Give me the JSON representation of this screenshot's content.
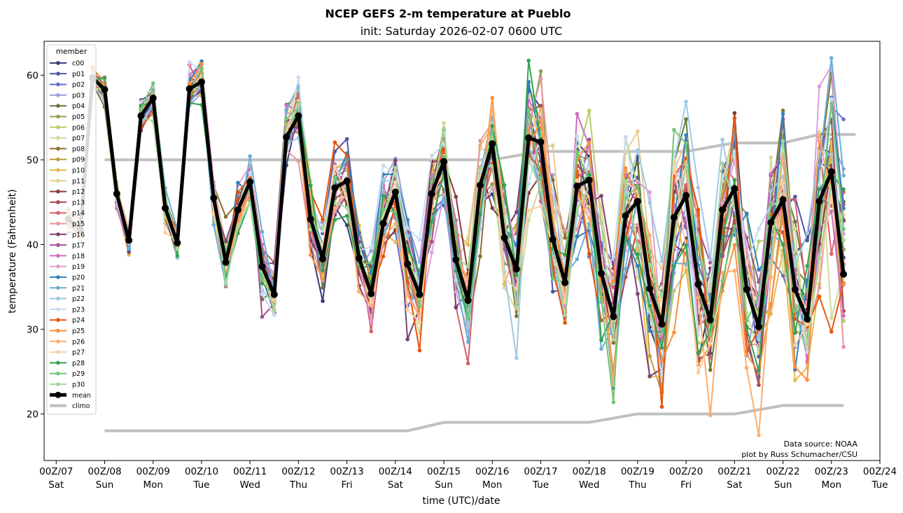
{
  "chart_data": {
    "type": "line",
    "title": "NCEP GEFS 2-m temperature at Pueblo",
    "subtitle": "init: Saturday 2026-02-07 0600 UTC",
    "xlabel": "time (UTC)/date",
    "ylabel": "temperature (Fahrenheit)",
    "xlim_hours": [
      -6,
      408
    ],
    "ylim": [
      14.5,
      64
    ],
    "grid": false,
    "legend": {
      "title": "member",
      "placement": "top-left"
    },
    "x_ticks": [
      {
        "line1": "00Z/07",
        "line2": "Sat"
      },
      {
        "line1": "00Z/08",
        "line2": "Sun"
      },
      {
        "line1": "00Z/09",
        "line2": "Mon"
      },
      {
        "line1": "00Z/10",
        "line2": "Tue"
      },
      {
        "line1": "00Z/11",
        "line2": "Wed"
      },
      {
        "line1": "00Z/12",
        "line2": "Thu"
      },
      {
        "line1": "00Z/13",
        "line2": "Fri"
      },
      {
        "line1": "00Z/14",
        "line2": "Sat"
      },
      {
        "line1": "00Z/15",
        "line2": "Sun"
      },
      {
        "line1": "00Z/16",
        "line2": "Mon"
      },
      {
        "line1": "00Z/17",
        "line2": "Tue"
      },
      {
        "line1": "00Z/18",
        "line2": "Wed"
      },
      {
        "line1": "00Z/19",
        "line2": "Thu"
      },
      {
        "line1": "00Z/20",
        "line2": "Fri"
      },
      {
        "line1": "00Z/21",
        "line2": "Sat"
      },
      {
        "line1": "00Z/22",
        "line2": "Sun"
      },
      {
        "line1": "00Z/23",
        "line2": "Mon"
      },
      {
        "line1": "00Z/24",
        "line2": "Tue"
      }
    ],
    "y_ticks": [
      20,
      30,
      40,
      50,
      60
    ],
    "x_hours_from_00Z07": [
      6,
      12,
      18,
      24,
      30,
      36,
      42,
      48,
      54,
      60,
      66,
      72,
      78,
      84,
      90,
      96,
      102,
      108,
      114,
      120,
      126,
      132,
      138,
      144,
      150,
      156,
      162,
      168,
      174,
      180,
      186,
      192,
      198,
      204,
      210,
      216,
      222,
      228,
      234,
      240,
      246,
      252,
      258,
      264,
      270,
      276,
      282,
      288,
      294,
      300,
      306,
      312,
      318,
      324,
      330,
      336,
      342,
      348,
      354,
      360,
      366,
      372,
      378,
      384,
      390
    ],
    "mean": {
      "name": "mean",
      "color": "#000000",
      "values": [
        43.0,
        41.7,
        59.7,
        58.3,
        46.0,
        40.5,
        55.2,
        57.3,
        44.3,
        40.2,
        58.4,
        59.2,
        45.5,
        37.9,
        44.1,
        47.4,
        37.4,
        34.1,
        52.7,
        55.2,
        43.0,
        38.3,
        46.7,
        47.5,
        38.4,
        34.2,
        42.5,
        46.2,
        37.7,
        34.1,
        46.0,
        49.8,
        38.2,
        33.4,
        47.0,
        51.9,
        40.8,
        37.1,
        52.6,
        52.1,
        40.6,
        35.5,
        46.9,
        47.6,
        36.6,
        31.5,
        43.4,
        45.1,
        34.8,
        30.6,
        43.2,
        45.8,
        35.3,
        31.1,
        44.1,
        46.6,
        34.7,
        30.3,
        42.6,
        45.3,
        34.7,
        31.2,
        45.1,
        48.6,
        36.5
      ]
    },
    "climo": {
      "name": "climo",
      "color": "#c0c0c0",
      "x_hours": [
        24,
        240,
        264,
        288,
        360,
        384,
        456,
        480,
        504,
        576,
        600,
        624
      ],
      "x_hours_note": "climo step points",
      "high": {
        "x": [
          24,
          216,
          240,
          312,
          336,
          360,
          378,
          396
        ],
        "values": [
          50,
          50,
          51,
          51,
          52,
          52,
          53,
          53
        ]
      },
      "low": {
        "x": [
          24,
          174,
          192,
          264,
          288,
          336,
          360,
          378,
          390
        ],
        "values": [
          18,
          18,
          19,
          19,
          20,
          20,
          21,
          21,
          21
        ]
      }
    },
    "members": [
      {
        "name": "c00",
        "color": "#393b79"
      },
      {
        "name": "p01",
        "color": "#5254a3"
      },
      {
        "name": "p02",
        "color": "#6b6ecf"
      },
      {
        "name": "p03",
        "color": "#9c9ede"
      },
      {
        "name": "p04",
        "color": "#637939"
      },
      {
        "name": "p05",
        "color": "#8ca252"
      },
      {
        "name": "p06",
        "color": "#b5cf6b"
      },
      {
        "name": "p07",
        "color": "#cedb9c"
      },
      {
        "name": "p08",
        "color": "#8c6d31"
      },
      {
        "name": "p09",
        "color": "#bd9e39"
      },
      {
        "name": "p10",
        "color": "#e7ba52"
      },
      {
        "name": "p11",
        "color": "#e7cb94"
      },
      {
        "name": "p12",
        "color": "#843c39"
      },
      {
        "name": "p13",
        "color": "#ad494a"
      },
      {
        "name": "p14",
        "color": "#d6616b"
      },
      {
        "name": "p15",
        "color": "#e7969c"
      },
      {
        "name": "p16",
        "color": "#7b4173"
      },
      {
        "name": "p17",
        "color": "#a55194"
      },
      {
        "name": "p18",
        "color": "#ce6dbd"
      },
      {
        "name": "p19",
        "color": "#de9ed6"
      },
      {
        "name": "p20",
        "color": "#3182bd"
      },
      {
        "name": "p21",
        "color": "#6baed6"
      },
      {
        "name": "p22",
        "color": "#9ecae1"
      },
      {
        "name": "p23",
        "color": "#c6dbef"
      },
      {
        "name": "p24",
        "color": "#e6550d"
      },
      {
        "name": "p25",
        "color": "#fd8d3c"
      },
      {
        "name": "p26",
        "color": "#fdae6b"
      },
      {
        "name": "p27",
        "color": "#fdd0a2"
      },
      {
        "name": "p28",
        "color": "#31a354"
      },
      {
        "name": "p29",
        "color": "#74c476"
      },
      {
        "name": "p30",
        "color": "#a1d99b"
      }
    ],
    "member_spread_note": "member values approximated as mean plus per-member deviation growing with lead time",
    "spread_by_lead": {
      "start": 0.8,
      "end": 9.0
    }
  },
  "credits": {
    "line1": "Data source: NOAA",
    "line2": "plot by Russ Schumacher/CSU"
  }
}
